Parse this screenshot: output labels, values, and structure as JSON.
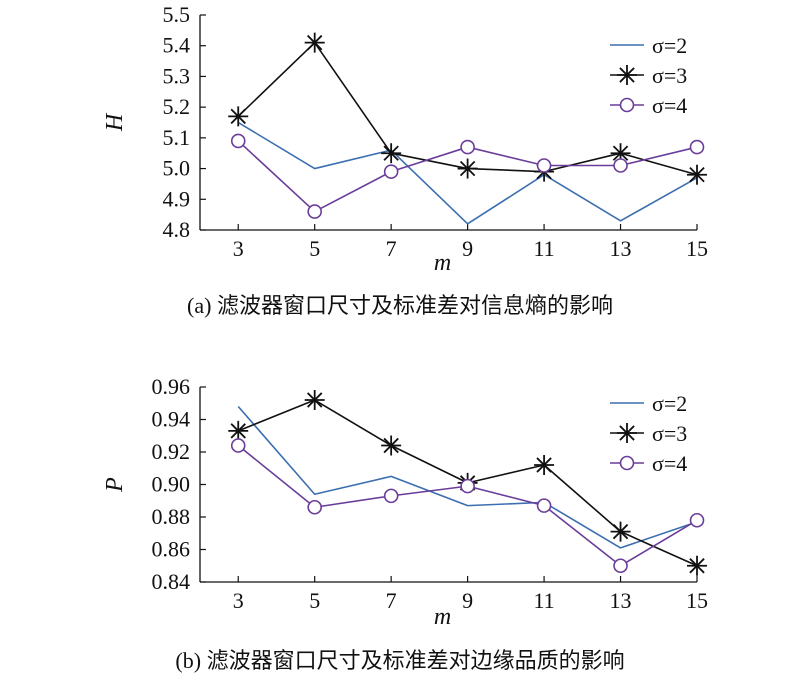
{
  "chart_data": [
    {
      "type": "line",
      "caption": "(a) 滤波器窗口尺寸及标准差对信息熵的影响",
      "xlabel": "m",
      "ylabel": "H",
      "x": [
        3,
        5,
        7,
        9,
        11,
        13,
        15
      ],
      "xticks": [
        "3",
        "5",
        "7",
        "9",
        "11",
        "13",
        "15"
      ],
      "yticks": [
        "4.8",
        "4.9",
        "5.0",
        "5.1",
        "5.2",
        "5.3",
        "5.4",
        "5.5"
      ],
      "xlim": [
        2,
        15
      ],
      "ylim": [
        4.8,
        5.5
      ],
      "legend_position": "top-right",
      "series": [
        {
          "name": "σ=2",
          "marker": "none",
          "color": "#3b6fb0",
          "values": [
            5.15,
            5.0,
            5.06,
            4.82,
            4.98,
            4.83,
            4.97
          ]
        },
        {
          "name": "σ=3",
          "marker": "asterisk",
          "color": "#111111",
          "values": [
            5.17,
            5.41,
            5.05,
            5.0,
            4.99,
            5.05,
            4.98
          ]
        },
        {
          "name": "σ=4",
          "marker": "circle",
          "color": "#6a3d9a",
          "values": [
            5.09,
            4.86,
            4.99,
            5.07,
            5.01,
            5.01,
            5.07
          ]
        }
      ]
    },
    {
      "type": "line",
      "caption": "(b) 滤波器窗口尺寸及标准差对边缘品质的影响",
      "xlabel": "m",
      "ylabel": "P",
      "x": [
        3,
        5,
        7,
        9,
        11,
        13,
        15
      ],
      "xticks": [
        "3",
        "5",
        "7",
        "9",
        "11",
        "13",
        "15"
      ],
      "yticks": [
        "0.84",
        "0.86",
        "0.88",
        "0.90",
        "0.92",
        "0.94",
        "0.96"
      ],
      "xlim": [
        2,
        15
      ],
      "ylim": [
        0.84,
        0.96
      ],
      "legend_position": "top-right",
      "series": [
        {
          "name": "σ=2",
          "marker": "none",
          "color": "#3b6fb0",
          "values": [
            0.948,
            0.894,
            0.905,
            0.887,
            0.889,
            0.861,
            0.877
          ]
        },
        {
          "name": "σ=3",
          "marker": "asterisk",
          "color": "#111111",
          "values": [
            0.933,
            0.952,
            0.924,
            0.901,
            0.912,
            0.871,
            0.85
          ]
        },
        {
          "name": "σ=4",
          "marker": "circle",
          "color": "#6a3d9a",
          "values": [
            0.924,
            0.886,
            0.893,
            0.899,
            0.887,
            0.85,
            0.878
          ]
        }
      ]
    }
  ]
}
